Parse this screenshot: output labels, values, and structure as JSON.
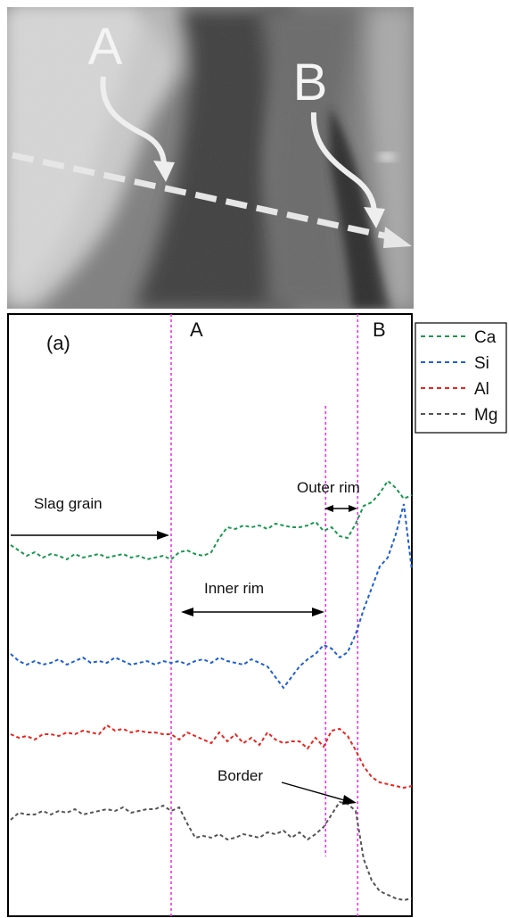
{
  "micrograph": {
    "point_a_label": "A",
    "point_b_label": "B"
  },
  "chart_data": {
    "type": "line",
    "panel_label": "(a)",
    "title": "",
    "xlabel": "",
    "ylabel": "",
    "markers": [
      {
        "label": "A",
        "x": 0.4
      },
      {
        "label": "",
        "x": 0.785
      },
      {
        "label": "B",
        "x": 0.865
      }
    ],
    "annotations": {
      "slag_grain": "Slag grain",
      "inner_rim": "Inner rim",
      "outer_rim": "Outer rim",
      "border": "Border"
    },
    "legend": {
      "position": "top-right",
      "items": [
        "Ca",
        "Si",
        "Al",
        "Mg"
      ]
    },
    "colors": {
      "Ca": "#1a9850",
      "Si": "#1f5fd6",
      "Al": "#e8251f",
      "Mg": "#555555",
      "marker_line": "#ee33ee"
    },
    "x": [
      0.0,
      0.02,
      0.04,
      0.06,
      0.08,
      0.1,
      0.12,
      0.14,
      0.16,
      0.18,
      0.2,
      0.22,
      0.24,
      0.26,
      0.28,
      0.3,
      0.32,
      0.34,
      0.36,
      0.38,
      0.4,
      0.42,
      0.44,
      0.46,
      0.48,
      0.5,
      0.52,
      0.54,
      0.56,
      0.58,
      0.6,
      0.62,
      0.64,
      0.66,
      0.68,
      0.7,
      0.72,
      0.74,
      0.76,
      0.78,
      0.8,
      0.82,
      0.84,
      0.86,
      0.88,
      0.9,
      0.92,
      0.94,
      0.96,
      0.98,
      1.0
    ],
    "series": [
      {
        "name": "Ca",
        "values": [
          6.6,
          6.3,
          6.0,
          6.2,
          5.9,
          6.1,
          6.0,
          5.8,
          6.1,
          5.9,
          6.0,
          6.1,
          5.9,
          6.0,
          6.1,
          5.9,
          6.0,
          5.8,
          5.9,
          6.0,
          5.8,
          6.2,
          6.3,
          6.1,
          6.0,
          6.2,
          7.0,
          7.6,
          7.5,
          7.7,
          7.6,
          7.7,
          7.5,
          7.8,
          7.7,
          7.6,
          7.6,
          7.7,
          7.9,
          7.4,
          7.6,
          7.1,
          7.0,
          7.8,
          8.8,
          9.0,
          9.5,
          10.2,
          9.8,
          9.2,
          9.4
        ]
      },
      {
        "name": "Si",
        "values": [
          0.5,
          0.1,
          -0.1,
          0.1,
          -0.1,
          0.0,
          0.2,
          -0.1,
          0.1,
          0.3,
          0.0,
          0.1,
          0.0,
          0.3,
          0.1,
          -0.1,
          0.0,
          0.1,
          -0.1,
          0.1,
          0.0,
          0.1,
          -0.1,
          0.1,
          0.2,
          0.0,
          0.3,
          0.1,
          0.0,
          -0.1,
          0.2,
          0.0,
          -0.2,
          -0.8,
          -1.4,
          -0.8,
          -0.2,
          0.2,
          0.5,
          1.0,
          0.8,
          0.3,
          0.6,
          1.6,
          3.0,
          4.2,
          5.4,
          5.9,
          7.2,
          8.9,
          5.2
        ]
      },
      {
        "name": "Al",
        "values": [
          -4.0,
          -4.2,
          -4.1,
          -4.3,
          -4.0,
          -4.0,
          -4.1,
          -3.9,
          -4.0,
          -3.8,
          -3.9,
          -4.0,
          -3.5,
          -3.8,
          -3.7,
          -3.9,
          -3.8,
          -3.9,
          -3.9,
          -4.0,
          -4.0,
          -4.3,
          -3.9,
          -4.1,
          -4.3,
          -4.5,
          -3.9,
          -4.4,
          -4.0,
          -4.5,
          -4.2,
          -4.6,
          -3.9,
          -4.3,
          -4.5,
          -4.4,
          -4.4,
          -4.8,
          -4.2,
          -4.7,
          -3.8,
          -3.7,
          -4.1,
          -4.9,
          -5.8,
          -6.4,
          -6.7,
          -6.8,
          -6.9,
          -7.0,
          -6.9
        ]
      },
      {
        "name": "Mg",
        "values": [
          -8.8,
          -8.4,
          -8.5,
          -8.5,
          -8.3,
          -8.5,
          -8.3,
          -8.4,
          -8.2,
          -8.5,
          -8.4,
          -8.3,
          -8.2,
          -8.3,
          -8.1,
          -8.4,
          -8.3,
          -8.2,
          -8.2,
          -8.0,
          -8.3,
          -8.1,
          -9.0,
          -9.8,
          -9.7,
          -9.8,
          -9.6,
          -9.9,
          -9.8,
          -9.6,
          -9.7,
          -9.8,
          -9.5,
          -9.6,
          -9.4,
          -9.8,
          -9.5,
          -9.9,
          -9.6,
          -9.2,
          -8.5,
          -7.8,
          -7.9,
          -8.3,
          -11.0,
          -12.2,
          -12.8,
          -13.0,
          -13.2,
          -13.3,
          -13.2
        ]
      }
    ]
  }
}
